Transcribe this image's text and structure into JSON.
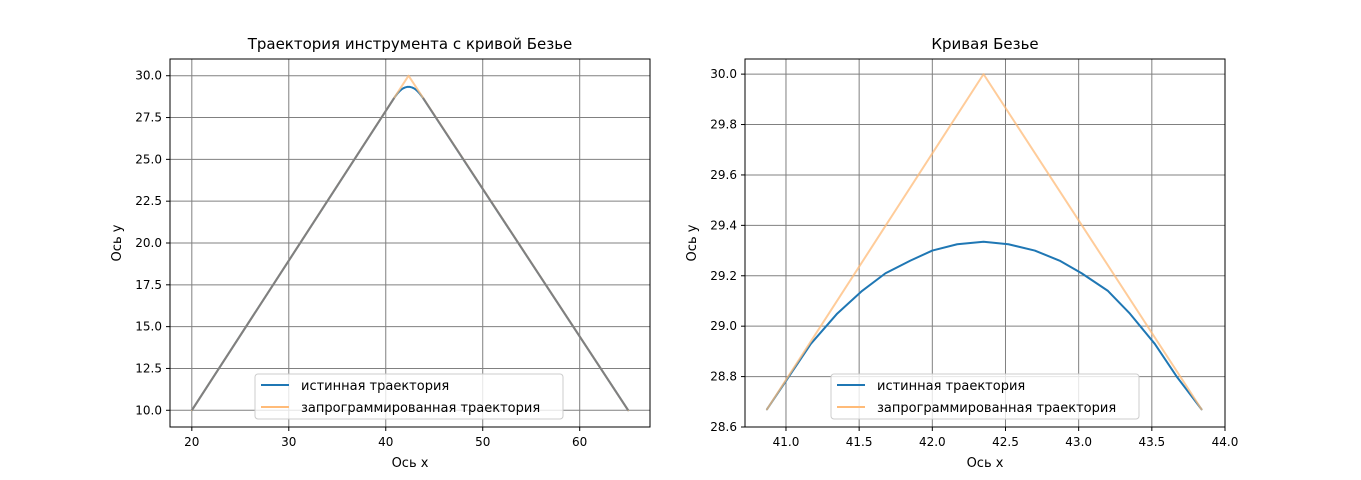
{
  "chart_data": [
    {
      "type": "line",
      "title": "Траектория инструмента с кривой Безье",
      "xlabel": "Ось x",
      "ylabel": "Ось y",
      "xlim": [
        17.75,
        67.25
      ],
      "ylim": [
        9.0,
        31.0
      ],
      "xticks": [
        20,
        30,
        40,
        50,
        60
      ],
      "xtick_labels": [
        "20",
        "30",
        "40",
        "50",
        "60"
      ],
      "yticks": [
        10.0,
        12.5,
        15.0,
        17.5,
        20.0,
        22.5,
        25.0,
        27.5,
        30.0
      ],
      "ytick_labels": [
        "10.0",
        "12.5",
        "15.0",
        "17.5",
        "20.0",
        "22.5",
        "25.0",
        "27.5",
        "30.0"
      ],
      "grid": true,
      "legend_position": "bottom-center",
      "series": [
        {
          "name": "истинная траектория",
          "color": "#1f77b4",
          "x": [
            20.0,
            40.87,
            41.0,
            41.2,
            41.4,
            41.6,
            41.8,
            42.0,
            42.2,
            42.35,
            42.5,
            42.7,
            42.9,
            43.1,
            43.3,
            43.5,
            43.7,
            43.84,
            65.0
          ],
          "y": [
            10.0,
            28.67,
            28.78,
            28.93,
            29.06,
            29.17,
            29.25,
            29.3,
            29.33,
            29.335,
            29.33,
            29.3,
            29.25,
            29.17,
            29.06,
            28.93,
            28.78,
            28.67,
            10.0
          ]
        },
        {
          "name": "запрограммированная траектория",
          "color": "#ffbb78",
          "x": [
            20.0,
            42.35,
            65.0
          ],
          "y": [
            10.0,
            30.0,
            10.0
          ]
        }
      ],
      "overlap_color": "#808080"
    },
    {
      "type": "line",
      "title": "Кривая Безье",
      "xlabel": "Ось x",
      "ylabel": "Ось y",
      "xlim": [
        40.72,
        44.0
      ],
      "ylim": [
        28.6,
        30.06
      ],
      "xticks": [
        41.0,
        41.5,
        42.0,
        42.5,
        43.0,
        43.5,
        44.0
      ],
      "xtick_labels": [
        "41.0",
        "41.5",
        "42.0",
        "42.5",
        "43.0",
        "43.5",
        "44.0"
      ],
      "yticks": [
        28.6,
        28.8,
        29.0,
        29.2,
        29.4,
        29.6,
        29.8,
        30.0
      ],
      "ytick_labels": [
        "28.6",
        "28.8",
        "29.0",
        "29.2",
        "29.4",
        "29.6",
        "29.8",
        "30.0"
      ],
      "grid": true,
      "legend_position": "bottom-center",
      "series": [
        {
          "name": "истинная траектория",
          "color": "#1f77b4",
          "x": [
            40.87,
            41.02,
            41.17,
            41.35,
            41.52,
            41.68,
            41.85,
            42.0,
            42.17,
            42.35,
            42.52,
            42.7,
            42.87,
            43.02,
            43.2,
            43.35,
            43.52,
            43.67,
            43.84
          ],
          "y": [
            28.67,
            28.8,
            28.93,
            29.05,
            29.14,
            29.21,
            29.26,
            29.3,
            29.325,
            29.335,
            29.325,
            29.3,
            29.26,
            29.21,
            29.14,
            29.05,
            28.93,
            28.8,
            28.67
          ]
        },
        {
          "name": "запрограммированная траектория",
          "color": "#ffbb78",
          "x": [
            40.87,
            42.35,
            43.84
          ],
          "y": [
            28.67,
            30.0,
            28.67
          ]
        }
      ]
    }
  ]
}
